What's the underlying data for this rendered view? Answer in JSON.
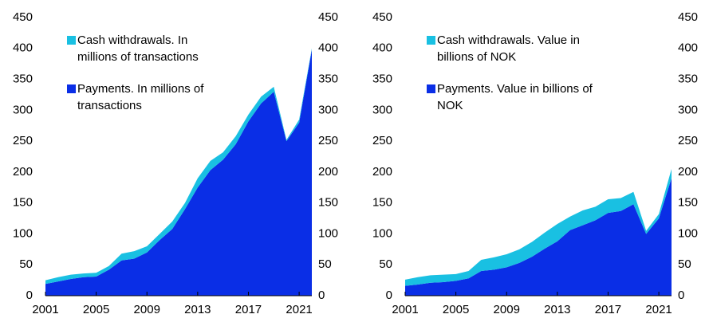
{
  "chart_data": [
    {
      "type": "area",
      "stacked": true,
      "x": [
        2001,
        2002,
        2003,
        2004,
        2005,
        2006,
        2007,
        2008,
        2009,
        2010,
        2011,
        2012,
        2013,
        2014,
        2015,
        2016,
        2017,
        2018,
        2019,
        2020,
        2021,
        2022
      ],
      "series": [
        {
          "name": "Payments. In millions of transactions",
          "color": "#0a2ee6",
          "values": [
            19,
            23,
            27,
            30,
            31,
            42,
            57,
            60,
            70,
            90,
            108,
            140,
            175,
            203,
            220,
            245,
            282,
            311,
            330,
            250,
            280,
            398
          ]
        },
        {
          "name": "Cash withdrawals. In millions of transactions",
          "color": "#19c0e2",
          "values": [
            6,
            7,
            7,
            6,
            6,
            6,
            11,
            12,
            10,
            10,
            12,
            10,
            15,
            15,
            12,
            13,
            11,
            11,
            8,
            2,
            5,
            2
          ]
        }
      ],
      "xlim": [
        2001,
        2022
      ],
      "xticks": [
        2001,
        2005,
        2009,
        2013,
        2017,
        2021
      ],
      "ylim": [
        0,
        450
      ],
      "yticks": [
        0,
        50,
        100,
        150,
        200,
        250,
        300,
        350,
        400,
        450
      ],
      "y2lim": [
        0,
        450
      ],
      "y2ticks": [
        0,
        50,
        100,
        150,
        200,
        250,
        300,
        350,
        400,
        450
      ],
      "legend": "upper left"
    },
    {
      "type": "area",
      "stacked": true,
      "x": [
        2001,
        2002,
        2003,
        2004,
        2005,
        2006,
        2007,
        2008,
        2009,
        2010,
        2011,
        2012,
        2013,
        2014,
        2015,
        2016,
        2017,
        2018,
        2019,
        2020,
        2021,
        2022
      ],
      "series": [
        {
          "name": "Payments. Value in billions of NOK",
          "color": "#0a2ee6",
          "values": [
            16,
            18,
            21,
            22,
            24,
            28,
            40,
            42,
            46,
            53,
            63,
            76,
            88,
            106,
            114,
            122,
            134,
            137,
            148,
            100,
            125,
            190
          ]
        },
        {
          "name": "Cash withdrawals. Value in billions of NOK",
          "color": "#19c0e2",
          "values": [
            10,
            12,
            12,
            12,
            11,
            12,
            18,
            20,
            21,
            22,
            24,
            26,
            28,
            22,
            24,
            22,
            22,
            21,
            20,
            5,
            7,
            15
          ]
        }
      ],
      "xlim": [
        2001,
        2022
      ],
      "xticks": [
        2001,
        2005,
        2009,
        2013,
        2017,
        2021
      ],
      "ylim": [
        0,
        450
      ],
      "yticks": [
        0,
        50,
        100,
        150,
        200,
        250,
        300,
        350,
        400,
        450
      ],
      "y2lim": [
        0,
        450
      ],
      "y2ticks": [
        0,
        50,
        100,
        150,
        200,
        250,
        300,
        350,
        400,
        450
      ],
      "legend": "upper left"
    }
  ]
}
